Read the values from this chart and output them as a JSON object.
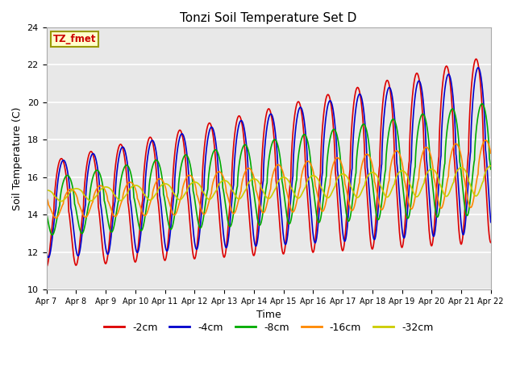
{
  "title": "Tonzi Soil Temperature Set D",
  "xlabel": "Time",
  "ylabel": "Soil Temperature (C)",
  "ylim": [
    10,
    24
  ],
  "label_box_text": "TZ_fmet",
  "legend_labels": [
    "-2cm",
    "-4cm",
    "-8cm",
    "-16cm",
    "-32cm"
  ],
  "legend_colors": [
    "#dd0000",
    "#0000cc",
    "#00aa00",
    "#ff8800",
    "#cccc00"
  ],
  "xtick_labels": [
    "Apr 7",
    "Apr 8",
    "Apr 9",
    "Apr 10",
    "Apr 11",
    "Apr 12",
    "Apr 13",
    "Apr 14",
    "Apr 15",
    "Apr 16",
    "Apr 17",
    "Apr 18",
    "Apr 19",
    "Apr 20",
    "Apr 21",
    "Apr 22"
  ],
  "plot_bg_color": "#e8e8e8",
  "fig_bg_color": "#ffffff",
  "grid_color": "#ffffff"
}
